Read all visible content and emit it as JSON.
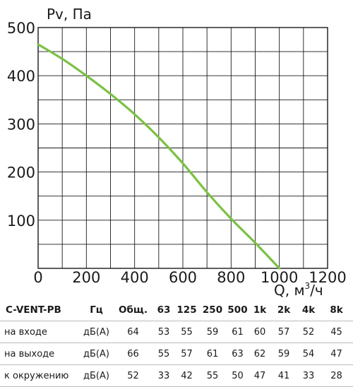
{
  "chart_data": {
    "type": "line",
    "ylabel": "Pv, Па",
    "xlabel": {
      "main": "Q, м",
      "sup": "3",
      "tail": "/ч"
    },
    "xlim": [
      0,
      1200
    ],
    "ylim": [
      0,
      500
    ],
    "xticks": [
      0,
      200,
      400,
      600,
      800,
      1000,
      1200
    ],
    "yticks": [
      100,
      200,
      300,
      400,
      500
    ],
    "grid": true,
    "x_minor_step": 100,
    "y_minor_step": 50,
    "series": [
      {
        "color": "#7ac143",
        "points": [
          [
            0,
            465
          ],
          [
            100,
            435
          ],
          [
            200,
            400
          ],
          [
            300,
            362
          ],
          [
            400,
            320
          ],
          [
            500,
            272
          ],
          [
            600,
            218
          ],
          [
            700,
            158
          ],
          [
            800,
            103
          ],
          [
            900,
            53
          ],
          [
            1000,
            0
          ]
        ]
      }
    ]
  },
  "colors": {
    "curve": "#7ac143",
    "grid": "#1a1a1a"
  },
  "table": {
    "headers": [
      "C-VENT-PB",
      "Гц",
      "Общ.",
      "63",
      "125",
      "250",
      "500",
      "1k",
      "2k",
      "4k",
      "8k"
    ],
    "rows": [
      {
        "label": "на входе",
        "unit": "дБ(А)",
        "values": [
          64,
          53,
          55,
          59,
          61,
          60,
          57,
          52,
          45
        ]
      },
      {
        "label": "на выходе",
        "unit": "дБ(А)",
        "values": [
          66,
          55,
          57,
          61,
          63,
          62,
          59,
          54,
          47
        ]
      },
      {
        "label": "к окружению",
        "unit": "дБ(А)",
        "values": [
          52,
          33,
          42,
          55,
          50,
          47,
          41,
          33,
          28
        ]
      }
    ]
  }
}
